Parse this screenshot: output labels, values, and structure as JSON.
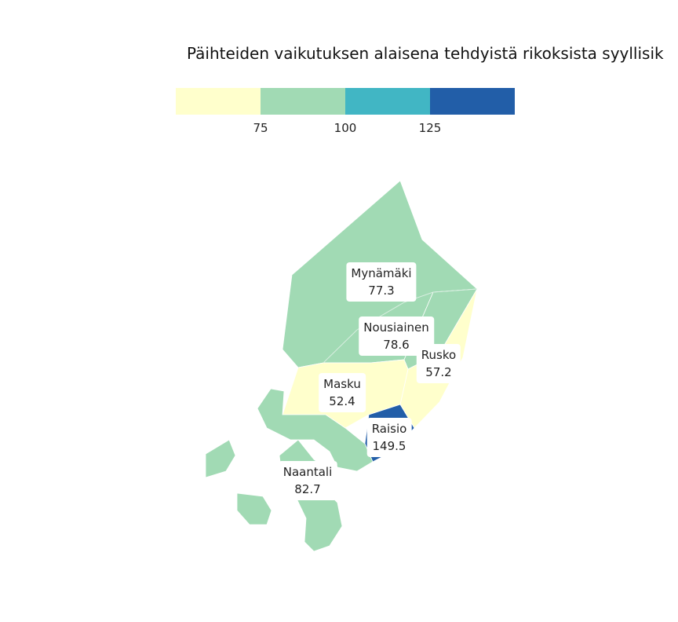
{
  "title": "Päihteiden vaikutuksen alaisena tehdyistä rikoksista syyllisik",
  "legend": {
    "colors": [
      "#ffffcc",
      "#a1dab4",
      "#41b6c4",
      "#225ea8"
    ],
    "ticks": [
      "75",
      "100",
      "125"
    ]
  },
  "regions": [
    {
      "name": "Mynämäki",
      "value": "77.3",
      "color": "#a1dab4"
    },
    {
      "name": "Nousiainen",
      "value": "78.6",
      "color": "#a1dab4"
    },
    {
      "name": "Rusko",
      "value": "57.2",
      "color": "#ffffcc"
    },
    {
      "name": "Masku",
      "value": "52.4",
      "color": "#ffffcc"
    },
    {
      "name": "Raisio",
      "value": "149.5",
      "color": "#225ea8"
    },
    {
      "name": "Naantali",
      "value": "82.7",
      "color": "#a1dab4"
    }
  ]
}
